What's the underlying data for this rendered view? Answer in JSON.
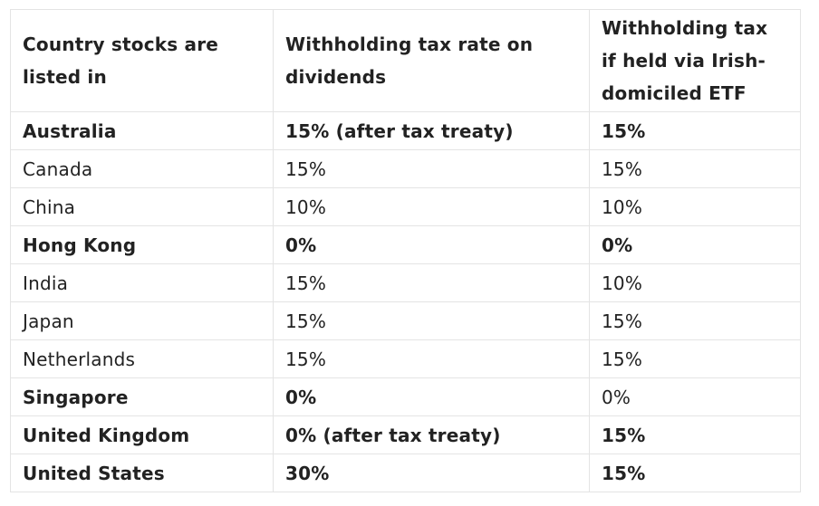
{
  "table": {
    "headers": [
      "Country stocks are listed in",
      "Withholding tax rate on dividends",
      "Withholding tax if held via Irish-domiciled ETF"
    ],
    "rows": [
      {
        "country": "Australia",
        "rate": "15% (after tax treaty)",
        "etf": "15%",
        "bold": [
          true,
          true,
          true
        ]
      },
      {
        "country": "Canada",
        "rate": "15%",
        "etf": "15%",
        "bold": [
          false,
          false,
          false
        ]
      },
      {
        "country": "China",
        "rate": "10%",
        "etf": "10%",
        "bold": [
          false,
          false,
          false
        ]
      },
      {
        "country": "Hong Kong",
        "rate": "0%",
        "etf": "0%",
        "bold": [
          true,
          true,
          true
        ]
      },
      {
        "country": "India",
        "rate": "15%",
        "etf": "10%",
        "bold": [
          false,
          false,
          false
        ]
      },
      {
        "country": "Japan",
        "rate": "15%",
        "etf": "15%",
        "bold": [
          false,
          false,
          false
        ]
      },
      {
        "country": "Netherlands",
        "rate": "15%",
        "etf": "15%",
        "bold": [
          false,
          false,
          false
        ]
      },
      {
        "country": "Singapore",
        "rate": "0%",
        "etf": "0%",
        "bold": [
          true,
          true,
          false
        ]
      },
      {
        "country": "United Kingdom",
        "rate": "0% (after tax treaty)",
        "etf": "15%",
        "bold": [
          true,
          true,
          true
        ]
      },
      {
        "country": "United States",
        "rate": "30%",
        "etf": "15%",
        "bold": [
          true,
          true,
          true
        ]
      }
    ]
  }
}
